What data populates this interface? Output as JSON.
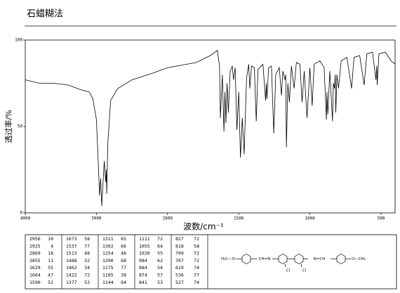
{
  "chart_data": {
    "type": "line",
    "title": "石蜡糊法",
    "xlabel": "波数/cm⁻¹",
    "ylabel": "透过率/%",
    "xlim": [
      4000,
      400
    ],
    "ylim": [
      0,
      100
    ],
    "xticks": [
      4000,
      3000,
      2000,
      1500,
      1000,
      500
    ],
    "yticks": [
      0,
      50,
      100
    ],
    "color": "#000000",
    "x": [
      4000,
      3800,
      3600,
      3400,
      3200,
      3100,
      3050,
      3000,
      2970,
      2956,
      2940,
      2925,
      2910,
      2890,
      2869,
      2862,
      2855,
      2840,
      2800,
      2700,
      2500,
      2200,
      2000,
      1800,
      1700,
      1650,
      1635,
      1629,
      1615,
      1604,
      1597,
      1590,
      1582,
      1573,
      1560,
      1545,
      1537,
      1525,
      1513,
      1500,
      1488,
      1475,
      1462,
      1445,
      1430,
      1422,
      1410,
      1390,
      1377,
      1365,
      1330,
      1311,
      1306,
      1302,
      1290,
      1270,
      1254,
      1240,
      1215,
      1200,
      1190,
      1175,
      1170,
      1165,
      1155,
      1144,
      1130,
      1111,
      1095,
      1070,
      1055,
      1040,
      1020,
      1000,
      984,
      970,
      930,
      900,
      884,
      880,
      874,
      860,
      841,
      835,
      827,
      822,
      818,
      810,
      799,
      780,
      740,
      707,
      690,
      650,
      619,
      600,
      560,
      536,
      530,
      527,
      515,
      470,
      430,
      400
    ],
    "values": [
      77,
      75,
      75,
      74,
      71,
      70,
      66,
      54,
      25,
      10,
      20,
      4,
      15,
      30,
      18,
      25,
      11,
      40,
      65,
      72,
      77,
      81,
      84,
      87,
      91,
      94,
      85,
      55,
      80,
      47,
      70,
      52,
      75,
      58,
      82,
      85,
      77,
      84,
      48,
      70,
      32,
      55,
      34,
      78,
      86,
      72,
      85,
      84,
      53,
      83,
      86,
      65,
      75,
      66,
      84,
      85,
      46,
      80,
      84,
      68,
      82,
      77,
      80,
      38,
      75,
      64,
      85,
      72,
      87,
      86,
      64,
      82,
      55,
      84,
      62,
      86,
      88,
      84,
      54,
      70,
      57,
      82,
      53,
      75,
      72,
      80,
      58,
      80,
      72,
      88,
      90,
      72,
      90,
      91,
      74,
      92,
      93,
      77,
      85,
      74,
      92,
      93,
      88,
      86
    ]
  },
  "peak_table": {
    "rows": [
      [
        2956,
        10,
        1673,
        58,
        1311,
        65,
        1111,
        72,
        827,
        72
      ],
      [
        2925,
        4,
        1537,
        77,
        1302,
        66,
        1055,
        64,
        818,
        58
      ],
      [
        2869,
        18,
        1513,
        48,
        1254,
        46,
        1020,
        55,
        799,
        72
      ],
      [
        2855,
        11,
        1488,
        32,
        1200,
        68,
        984,
        62,
        707,
        72
      ],
      [
        1629,
        55,
        1462,
        34,
        1175,
        77,
        884,
        54,
        619,
        74
      ],
      [
        1604,
        47,
        1422,
        72,
        1165,
        38,
        874,
        57,
        536,
        77
      ],
      [
        1590,
        52,
        1377,
        53,
        1144,
        64,
        841,
        53,
        527,
        74
      ]
    ]
  },
  "structure": {
    "labels": [
      "H₃C—O",
      "CH=N",
      "Cl",
      "Cl",
      "N=CH",
      "O—CH₃"
    ]
  }
}
